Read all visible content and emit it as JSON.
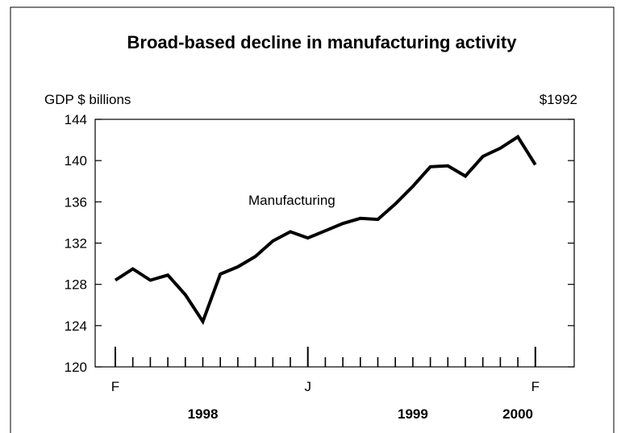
{
  "chart_data": {
    "type": "line",
    "title": "Broad-based decline in manufacturing activity",
    "ylabel_left": "GDP $ billions",
    "ylabel_right": "$1992",
    "ylim": [
      120,
      144
    ],
    "yticks": [
      120,
      124,
      128,
      132,
      136,
      140,
      144
    ],
    "ytick_labels": [
      "120",
      "124",
      "128",
      "132",
      "136",
      "140",
      "144"
    ],
    "x": [
      "1998-02",
      "1998-03",
      "1998-04",
      "1998-05",
      "1998-06",
      "1998-07",
      "1998-08",
      "1998-09",
      "1998-10",
      "1998-11",
      "1998-12",
      "1999-01",
      "1999-02",
      "1999-03",
      "1999-04",
      "1999-05",
      "1999-06",
      "1999-07",
      "1999-08",
      "1999-09",
      "1999-10",
      "1999-11",
      "1999-12",
      "2000-01",
      "2000-02"
    ],
    "series": [
      {
        "name": "Manufacturing",
        "values": [
          128.4,
          129.5,
          128.4,
          128.9,
          127.0,
          124.4,
          129.0,
          129.7,
          130.7,
          132.2,
          133.1,
          132.5,
          133.2,
          133.9,
          134.4,
          134.3,
          135.8,
          137.5,
          139.4,
          139.5,
          138.5,
          140.4,
          141.2,
          142.3,
          139.6
        ]
      }
    ],
    "xtick_labels": [
      {
        "x": "1998-02",
        "label": "F"
      },
      {
        "x": "1999-01",
        "label": "J"
      },
      {
        "x": "2000-02",
        "label": "F"
      }
    ],
    "year_labels": [
      {
        "x": "1998-07",
        "label": "1998"
      },
      {
        "x": "1999-07",
        "label": "1999"
      },
      {
        "x": "2000-01",
        "label": "2000"
      }
    ],
    "legend": "inline",
    "grid": false
  },
  "colors": {
    "line": "#000000",
    "background": "#ffffff"
  }
}
